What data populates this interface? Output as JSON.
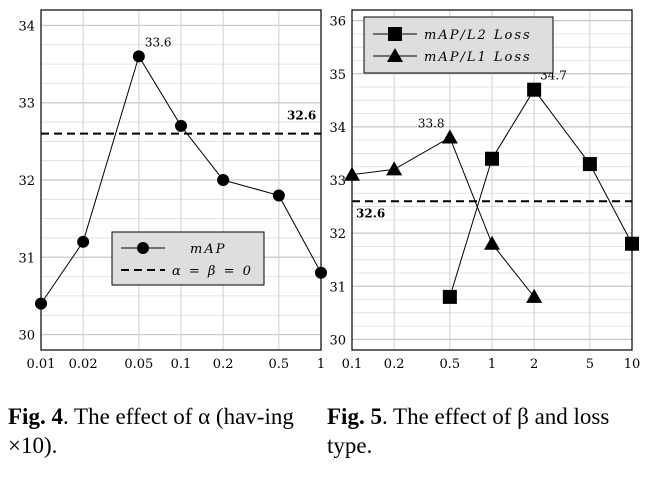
{
  "chart_data": [
    {
      "type": "line",
      "xscale": "log",
      "x": [
        0.01,
        0.02,
        0.05,
        0.1,
        0.2,
        0.5,
        1
      ],
      "xticklabels": [
        "0.01",
        "0.02",
        "0.05",
        "0.1",
        "0.2",
        "0.5",
        "1"
      ],
      "xlim": [
        0.01,
        1
      ],
      "ylim": [
        29.8,
        34.2
      ],
      "yticks": [
        30,
        31,
        32,
        33,
        34
      ],
      "yticklabels": [
        "30",
        "31",
        "32",
        "33",
        "34"
      ],
      "grid": true,
      "series": [
        {
          "name": "mAP",
          "marker": "circle",
          "values": [
            30.4,
            31.2,
            33.6,
            32.7,
            32.0,
            31.8,
            30.8
          ]
        }
      ],
      "baseline": {
        "name": "α = β = 0",
        "value": 32.6,
        "style": "dashed",
        "label": "32.6"
      },
      "annotations": [
        {
          "x": 0.05,
          "y": 33.6,
          "text": "33.6"
        }
      ],
      "legend": {
        "placement": "lower-center",
        "entries": [
          "mAP",
          "α = β = 0"
        ]
      }
    },
    {
      "type": "line",
      "xscale": "log",
      "x": [
        0.1,
        0.2,
        0.5,
        1,
        2,
        5,
        10
      ],
      "xticklabels": [
        "0.1",
        "0.2",
        "0.5",
        "1",
        "2",
        "5",
        "10"
      ],
      "xlim": [
        0.1,
        10
      ],
      "ylim": [
        29.8,
        36.2
      ],
      "yticks": [
        30,
        31,
        32,
        33,
        34,
        35,
        36
      ],
      "yticklabels": [
        "30",
        "31",
        "32",
        "33",
        "34",
        "35",
        "36"
      ],
      "grid": true,
      "series": [
        {
          "name": "mAP/L2 Loss",
          "marker": "square",
          "x": [
            0.5,
            1,
            2,
            5,
            10
          ],
          "values": [
            30.8,
            33.4,
            34.7,
            33.3,
            31.8
          ]
        },
        {
          "name": "mAP/L1 Loss",
          "marker": "triangle",
          "x": [
            0.1,
            0.2,
            0.5,
            1,
            2
          ],
          "values": [
            33.1,
            33.2,
            33.8,
            31.8,
            30.8
          ]
        }
      ],
      "baseline": {
        "value": 32.6,
        "style": "dashed",
        "label": "32.6"
      },
      "annotations": [
        {
          "x": 2,
          "y": 34.7,
          "text": "34.7"
        },
        {
          "x": 0.5,
          "y": 33.8,
          "text": "33.8"
        }
      ],
      "legend": {
        "placement": "top-left",
        "entries": [
          "mAP/L2 Loss",
          "mAP/L1 Loss"
        ]
      }
    }
  ],
  "captions": {
    "fig4": {
      "label": "Fig. 4",
      "text": ". The effect of α (hav-ing ×10)."
    },
    "fig5": {
      "label": "Fig. 5",
      "text": ".  The effect of β and loss type."
    }
  }
}
